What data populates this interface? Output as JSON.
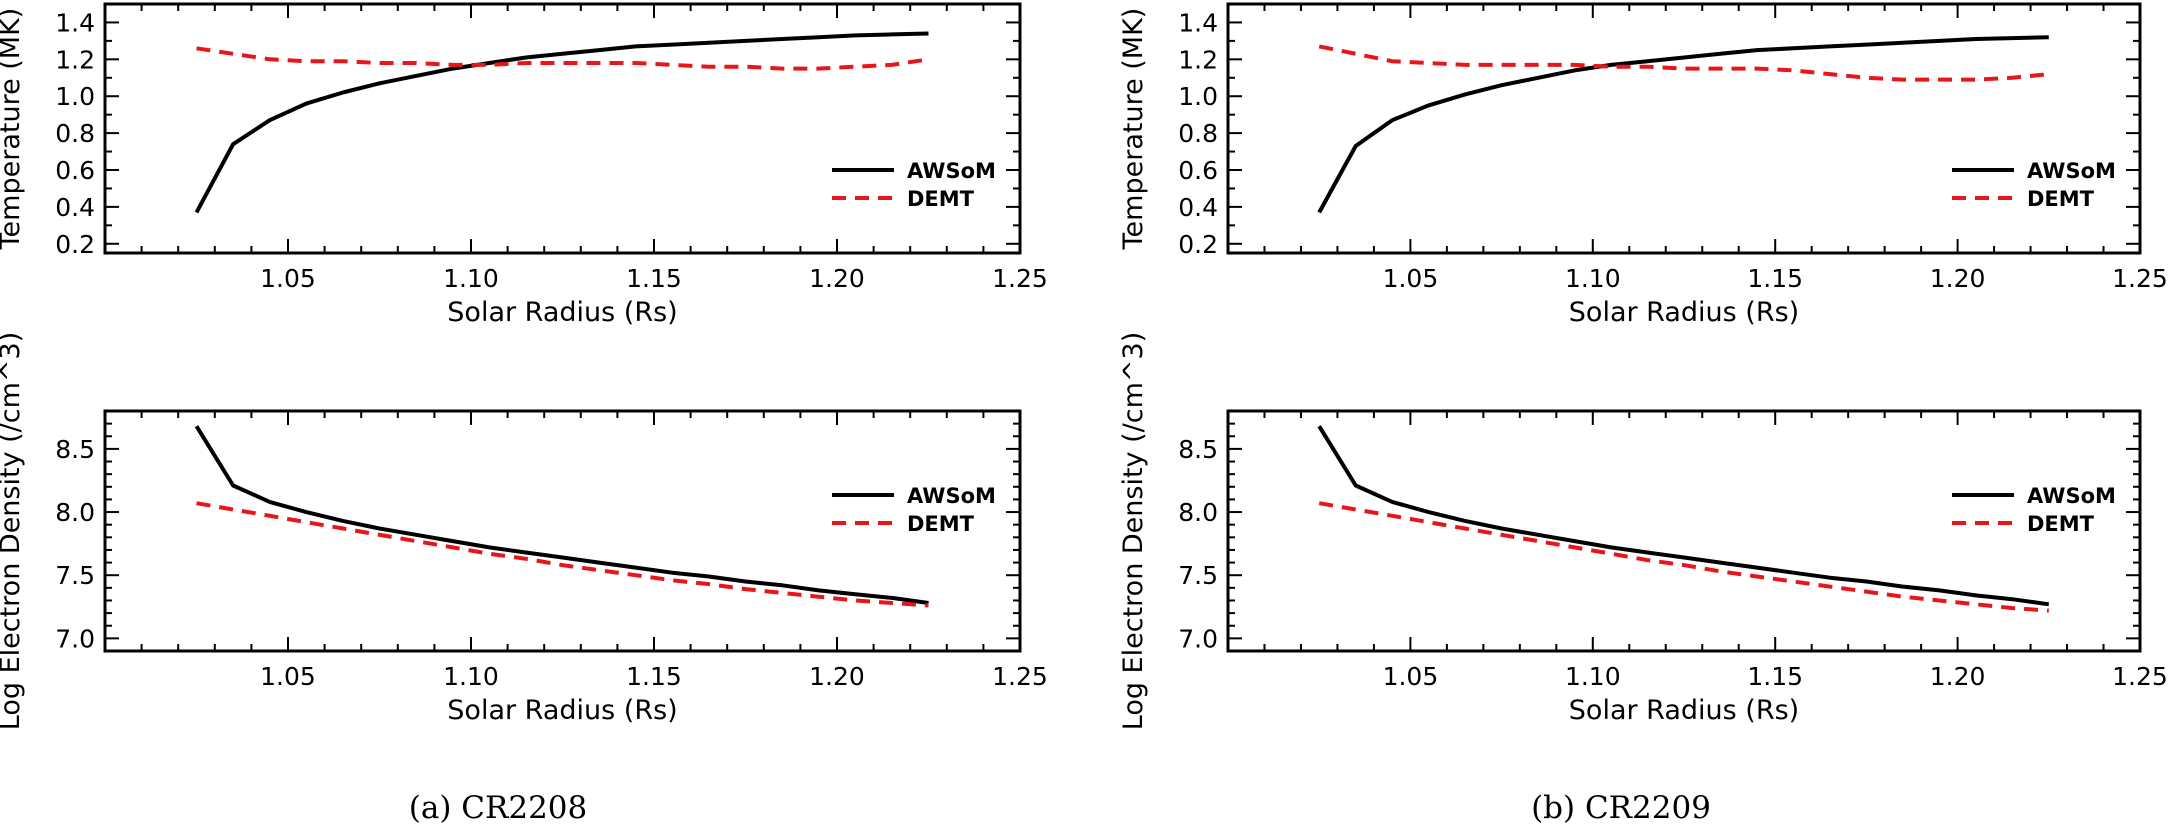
{
  "captions": [
    "(a) CR2208",
    "(b) CR2209"
  ],
  "colors": {
    "awsom": "#000000",
    "demt": "#e8151b"
  },
  "chart_data": [
    {
      "type": "line",
      "panel": "CR2208 temperature",
      "title": "",
      "xlabel": "Solar Radius (Rs)",
      "ylabel": "Temperature (MK)",
      "xlim": [
        1.0,
        1.25
      ],
      "ylim": [
        0.15,
        1.5
      ],
      "xticks": [
        1.0,
        1.05,
        1.1,
        1.15,
        1.2,
        1.25
      ],
      "xtick_labels": [
        "",
        "1.05",
        "1.10",
        "1.15",
        "1.20",
        "1.25"
      ],
      "yticks": [
        0.2,
        0.4,
        0.6,
        0.8,
        1.0,
        1.2,
        1.4
      ],
      "ytick_labels": [
        "0.2",
        "0.4",
        "0.6",
        "0.8",
        "1.0",
        "1.2",
        "1.4"
      ],
      "legend_position": "right-center",
      "x": [
        1.025,
        1.035,
        1.045,
        1.055,
        1.065,
        1.075,
        1.085,
        1.095,
        1.105,
        1.115,
        1.125,
        1.135,
        1.145,
        1.155,
        1.165,
        1.175,
        1.185,
        1.195,
        1.205,
        1.215,
        1.225
      ],
      "series": [
        {
          "name": "AWSoM",
          "style": "solid",
          "values": [
            0.37,
            0.74,
            0.87,
            0.96,
            1.02,
            1.07,
            1.11,
            1.15,
            1.18,
            1.21,
            1.23,
            1.25,
            1.27,
            1.28,
            1.29,
            1.3,
            1.31,
            1.32,
            1.33,
            1.335,
            1.34
          ]
        },
        {
          "name": "DEMT",
          "style": "dashed",
          "values": [
            1.26,
            1.23,
            1.2,
            1.19,
            1.19,
            1.18,
            1.18,
            1.17,
            1.17,
            1.18,
            1.18,
            1.18,
            1.18,
            1.17,
            1.16,
            1.16,
            1.15,
            1.15,
            1.16,
            1.17,
            1.2
          ]
        }
      ]
    },
    {
      "type": "line",
      "panel": "CR2208 density",
      "title": "",
      "xlabel": "Solar Radius (Rs)",
      "ylabel": "Log Electron Density (/cm^3)",
      "xlim": [
        1.0,
        1.25
      ],
      "ylim": [
        6.9,
        8.8
      ],
      "xticks": [
        1.0,
        1.05,
        1.1,
        1.15,
        1.2,
        1.25
      ],
      "xtick_labels": [
        "",
        "1.05",
        "1.10",
        "1.15",
        "1.20",
        "1.25"
      ],
      "yticks": [
        7.0,
        7.5,
        8.0,
        8.5
      ],
      "ytick_labels": [
        "7.0",
        "7.5",
        "8.0",
        "8.5"
      ],
      "legend_position": "right-top",
      "x": [
        1.025,
        1.035,
        1.045,
        1.055,
        1.065,
        1.075,
        1.085,
        1.095,
        1.105,
        1.115,
        1.125,
        1.135,
        1.145,
        1.155,
        1.165,
        1.175,
        1.185,
        1.195,
        1.205,
        1.215,
        1.225
      ],
      "series": [
        {
          "name": "AWSoM",
          "style": "solid",
          "values": [
            8.68,
            8.21,
            8.08,
            8.0,
            7.93,
            7.87,
            7.82,
            7.77,
            7.72,
            7.68,
            7.64,
            7.6,
            7.56,
            7.52,
            7.49,
            7.45,
            7.42,
            7.38,
            7.35,
            7.32,
            7.28
          ]
        },
        {
          "name": "DEMT",
          "style": "dashed",
          "values": [
            8.07,
            8.02,
            7.97,
            7.92,
            7.87,
            7.82,
            7.77,
            7.72,
            7.67,
            7.63,
            7.58,
            7.54,
            7.5,
            7.46,
            7.43,
            7.39,
            7.36,
            7.33,
            7.3,
            7.28,
            7.26
          ]
        }
      ]
    },
    {
      "type": "line",
      "panel": "CR2209 temperature",
      "title": "",
      "xlabel": "Solar Radius (Rs)",
      "ylabel": "Temperature (MK)",
      "xlim": [
        1.0,
        1.25
      ],
      "ylim": [
        0.15,
        1.5
      ],
      "xticks": [
        1.0,
        1.05,
        1.1,
        1.15,
        1.2,
        1.25
      ],
      "xtick_labels": [
        "",
        "1.05",
        "1.10",
        "1.15",
        "1.20",
        "1.25"
      ],
      "yticks": [
        0.2,
        0.4,
        0.6,
        0.8,
        1.0,
        1.2,
        1.4
      ],
      "ytick_labels": [
        "0.2",
        "0.4",
        "0.6",
        "0.8",
        "1.0",
        "1.2",
        "1.4"
      ],
      "legend_position": "right-center",
      "x": [
        1.025,
        1.035,
        1.045,
        1.055,
        1.065,
        1.075,
        1.085,
        1.095,
        1.105,
        1.115,
        1.125,
        1.135,
        1.145,
        1.155,
        1.165,
        1.175,
        1.185,
        1.195,
        1.205,
        1.215,
        1.225
      ],
      "series": [
        {
          "name": "AWSoM",
          "style": "solid",
          "values": [
            0.37,
            0.73,
            0.87,
            0.95,
            1.01,
            1.06,
            1.1,
            1.14,
            1.17,
            1.19,
            1.21,
            1.23,
            1.25,
            1.26,
            1.27,
            1.28,
            1.29,
            1.3,
            1.31,
            1.315,
            1.32
          ]
        },
        {
          "name": "DEMT",
          "style": "dashed",
          "values": [
            1.27,
            1.23,
            1.19,
            1.18,
            1.17,
            1.17,
            1.17,
            1.17,
            1.16,
            1.16,
            1.15,
            1.15,
            1.15,
            1.14,
            1.12,
            1.1,
            1.09,
            1.09,
            1.09,
            1.1,
            1.12
          ]
        }
      ]
    },
    {
      "type": "line",
      "panel": "CR2209 density",
      "title": "",
      "xlabel": "Solar Radius (Rs)",
      "ylabel": "Log Electron Density (/cm^3)",
      "xlim": [
        1.0,
        1.25
      ],
      "ylim": [
        6.9,
        8.8
      ],
      "xticks": [
        1.0,
        1.05,
        1.1,
        1.15,
        1.2,
        1.25
      ],
      "xtick_labels": [
        "",
        "1.05",
        "1.10",
        "1.15",
        "1.20",
        "1.25"
      ],
      "yticks": [
        7.0,
        7.5,
        8.0,
        8.5
      ],
      "ytick_labels": [
        "7.0",
        "7.5",
        "8.0",
        "8.5"
      ],
      "legend_position": "right-top",
      "x": [
        1.025,
        1.035,
        1.045,
        1.055,
        1.065,
        1.075,
        1.085,
        1.095,
        1.105,
        1.115,
        1.125,
        1.135,
        1.145,
        1.155,
        1.165,
        1.175,
        1.185,
        1.195,
        1.205,
        1.215,
        1.225
      ],
      "series": [
        {
          "name": "AWSoM",
          "style": "solid",
          "values": [
            8.68,
            8.21,
            8.08,
            8.0,
            7.93,
            7.87,
            7.82,
            7.77,
            7.72,
            7.68,
            7.64,
            7.6,
            7.56,
            7.52,
            7.48,
            7.45,
            7.41,
            7.38,
            7.34,
            7.31,
            7.27
          ]
        },
        {
          "name": "DEMT",
          "style": "dashed",
          "values": [
            8.07,
            8.02,
            7.97,
            7.92,
            7.87,
            7.82,
            7.77,
            7.72,
            7.67,
            7.62,
            7.58,
            7.53,
            7.49,
            7.45,
            7.41,
            7.37,
            7.33,
            7.3,
            7.27,
            7.24,
            7.22
          ]
        }
      ]
    }
  ]
}
